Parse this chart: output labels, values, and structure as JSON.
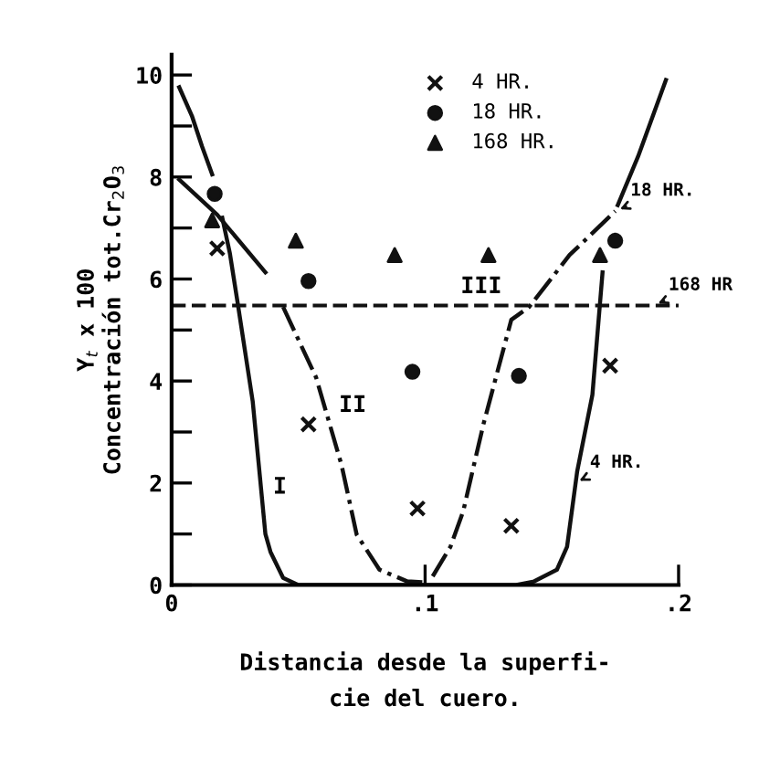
{
  "chart_data": {
    "type": "scatter",
    "xlabel": "Distancia desde la superfi-\ncie del cuero.",
    "ylabel": "Y$_{t}$ x 100\nConcentración tot.Cr$_{2}$O$_{3}$",
    "xlim": [
      0,
      0.2
    ],
    "ylim": [
      0,
      10.4
    ],
    "xticks": [
      0,
      {
        "value": 0.1,
        "label": ".1"
      },
      {
        "value": 0.2,
        "label": ".2"
      }
    ],
    "yticks": [
      0,
      {
        "value": 1,
        "label": null
      },
      2,
      {
        "value": 3,
        "label": null
      },
      4,
      {
        "value": 5,
        "label": null
      },
      6,
      {
        "value": 7,
        "label": null
      },
      8,
      {
        "value": 9,
        "label": null
      },
      10
    ],
    "grid": false,
    "legend": "top",
    "series": [
      {
        "name": "4 HR.",
        "marker": "cross",
        "color": "#111111",
        "x": [
          0.018,
          0.054,
          0.097,
          0.134,
          0.173
        ],
        "values": [
          6.6,
          3.15,
          1.5,
          1.16,
          4.3
        ]
      },
      {
        "name": "18 HR.",
        "marker": "circle",
        "color": "#111111",
        "x": [
          0.017,
          0.054,
          0.095,
          0.137,
          0.175
        ],
        "values": [
          7.67,
          5.96,
          4.18,
          4.1,
          6.75
        ]
      },
      {
        "name": "168 HR.",
        "marker": "triangle",
        "color": "#111111",
        "x": [
          0.016,
          0.049,
          0.088,
          0.125,
          0.169
        ],
        "values": [
          7.15,
          6.75,
          6.47,
          6.47,
          6.47
        ]
      },
      {
        "type": "line",
        "line_style": "solid",
        "color": "#111111",
        "x": [
          0.003,
          0.008,
          0.012,
          0.016
        ],
        "values": [
          9.76,
          9.2,
          8.6,
          8.05
        ]
      },
      {
        "type": "line",
        "line_style": "solid",
        "color": "#111111",
        "x": [
          0.02,
          0.023,
          0.026,
          0.032,
          0.037,
          0.039,
          0.044,
          0.05,
          0.1,
          0.136,
          0.143,
          0.152,
          0.156,
          0.16,
          0.166,
          0.17
        ],
        "values": [
          7.2,
          6.5,
          5.55,
          3.6,
          1.0,
          0.65,
          0.14,
          0.0,
          0.0,
          0.0,
          0.07,
          0.3,
          0.75,
          2.23,
          3.73,
          6.13
        ]
      },
      {
        "type": "line",
        "line_style": "solid",
        "color": "#111111",
        "x": [
          0.003,
          0.018,
          0.037
        ],
        "values": [
          7.95,
          7.26,
          6.13
        ]
      },
      {
        "type": "line",
        "line_style": "dashdot",
        "color": "#111111",
        "x": [
          0.044,
          0.057,
          0.067,
          0.073,
          0.082,
          0.093,
          0.1
        ],
        "values": [
          5.45,
          4.07,
          2.36,
          0.99,
          0.3,
          0.07,
          0.05
        ]
      },
      {
        "type": "line",
        "line_style": "dashdot",
        "color": "#111111",
        "x": [
          0.103,
          0.11,
          0.115,
          0.123,
          0.134,
          0.141,
          0.157,
          0.175
        ],
        "values": [
          0.17,
          0.75,
          1.44,
          3.15,
          5.2,
          5.45,
          6.47,
          7.33
        ]
      },
      {
        "type": "line",
        "line_style": "solid",
        "color": "#111111",
        "x": [
          0.176,
          0.184,
          0.195
        ],
        "values": [
          7.45,
          8.4,
          9.9
        ]
      }
    ],
    "ref_lines": [
      {
        "axis": "y",
        "value": 5.48,
        "line_style": "dashed",
        "color": "#111111"
      }
    ],
    "annotations": [
      {
        "text": "I",
        "x": 0.036,
        "y": 1.55
      },
      {
        "text": "II",
        "x": 0.062,
        "y": 3.15
      },
      {
        "text": "III",
        "x": 0.11,
        "y": 5.48
      },
      {
        "text": "18 HR.",
        "x": 0.175,
        "y": 7.33
      },
      {
        "text": "168 HR",
        "x": 0.19,
        "y": 5.48
      },
      {
        "text": "4 HR.",
        "x": 0.159,
        "y": 2.0
      }
    ]
  }
}
